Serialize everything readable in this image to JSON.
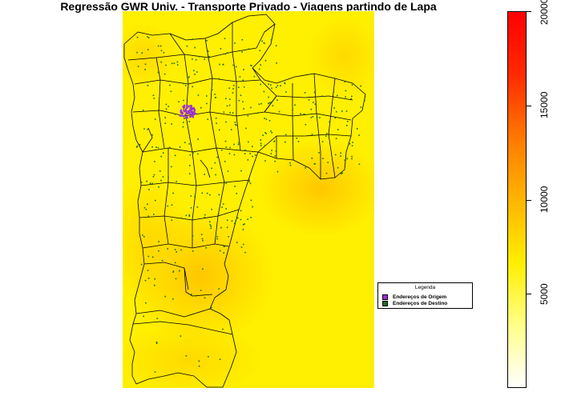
{
  "title": "Regressão GWR Univ. - Transporte Privado - Viagens partindo de Lapa",
  "legend": {
    "title": "Legenda",
    "items": [
      {
        "label": "Endereços de Origem",
        "color": "#9b30d9"
      },
      {
        "label": "Endereços de Destino",
        "color": "#1f6b1f"
      }
    ]
  },
  "colorbar": {
    "min": 0,
    "max": 20000,
    "ticks": [
      "5000",
      "10000",
      "15000",
      "20000"
    ],
    "tick_values": [
      5000,
      10000,
      15000,
      20000
    ],
    "palette": [
      "#ffffff",
      "#ffff88",
      "#ffee00",
      "#ffb400",
      "#ff7800",
      "#ff2a00",
      "#ff0000"
    ]
  },
  "map": {
    "background": "#ffef00",
    "boundary_color": "#000000",
    "origin_color": "#9b30d9",
    "destination_color": "#1f6b1f"
  }
}
